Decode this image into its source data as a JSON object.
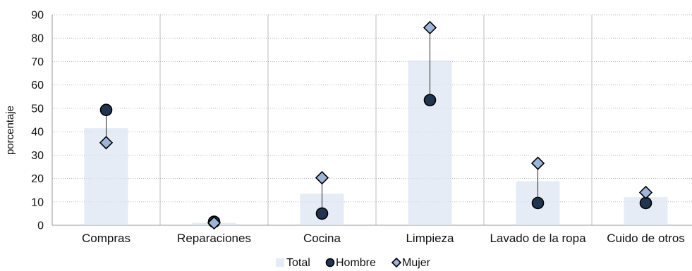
{
  "chart_data": {
    "type": "bar",
    "title": "",
    "xlabel": "",
    "ylabel": "porcentaje",
    "ylim": [
      0,
      90
    ],
    "yticks": [
      0,
      10,
      20,
      30,
      40,
      50,
      60,
      70,
      80,
      90
    ],
    "grid": true,
    "legend_position": "bottom",
    "categories": [
      "Compras",
      "Reparaciones",
      "Cocina",
      "Limpieza",
      "Lavado de la ropa",
      "Cuido de otros"
    ],
    "series": [
      {
        "name": "Total",
        "kind": "bar",
        "color": "#dce6f2",
        "values": [
          41.5,
          1,
          13.5,
          70.5,
          18.8,
          12
        ]
      },
      {
        "name": "Hombre",
        "kind": "marker-circle",
        "color": "#1f3550",
        "values": [
          49.3,
          1.5,
          5,
          53.5,
          9.5,
          9.5
        ]
      },
      {
        "name": "Mujer",
        "kind": "marker-diamond",
        "color": "#9db5d9",
        "values": [
          35.3,
          1,
          20.3,
          84.5,
          26.5,
          14
        ]
      }
    ]
  }
}
